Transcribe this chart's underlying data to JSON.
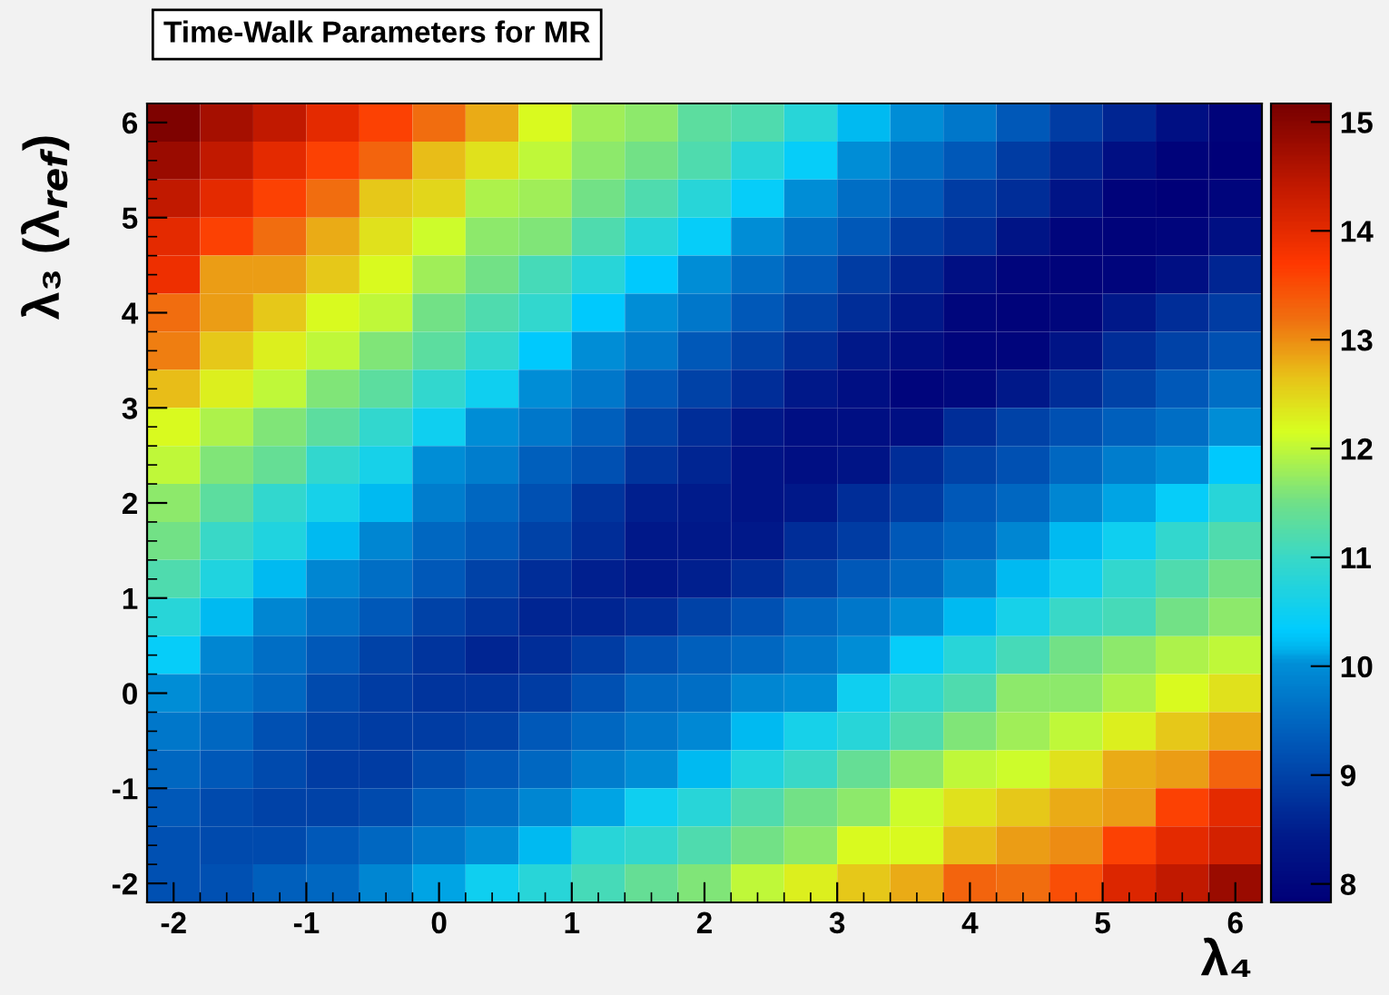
{
  "chart_data": {
    "type": "heatmap",
    "title": "Time-Walk Parameters for MR",
    "xlabel": "λ₄",
    "ylabel": "λ₃ (λ$_{ref}$)",
    "x": [
      -2.0,
      -1.6,
      -1.2,
      -0.8,
      -0.4,
      0.0,
      0.4,
      0.8,
      1.2,
      1.6,
      2.0,
      2.4,
      2.8,
      3.2,
      3.6,
      4.0,
      4.4,
      4.8,
      5.2,
      5.6,
      6.0
    ],
    "y": [
      6.0,
      5.6,
      5.2,
      4.8,
      4.4,
      4.0,
      3.6,
      3.2,
      2.8,
      2.4,
      2.0,
      1.6,
      1.2,
      0.8,
      0.4,
      0.0,
      -0.4,
      -0.8,
      -1.2,
      -1.6,
      -2.0
    ],
    "xlim": [
      -2.2,
      6.2
    ],
    "xticks": [
      -2,
      -1,
      0,
      1,
      2,
      3,
      4,
      5,
      6
    ],
    "ylim": [
      -2.2,
      6.2
    ],
    "yticks": [
      -2,
      -1,
      0,
      1,
      2,
      3,
      4,
      5,
      6
    ],
    "clim": [
      7.83,
      15.17
    ],
    "cticks": [
      8,
      9,
      10,
      11,
      12,
      13,
      14,
      15
    ],
    "cells": [
      [
        15.1,
        14.7,
        14.4,
        14.0,
        13.6,
        13.2,
        12.8,
        12.2,
        11.8,
        11.7,
        11.3,
        11.2,
        10.8,
        10.2,
        10.0,
        9.7,
        9.3,
        8.9,
        8.6,
        8.2,
        7.9
      ],
      [
        14.8,
        14.4,
        14.0,
        13.6,
        13.3,
        12.7,
        12.4,
        12.0,
        11.7,
        11.5,
        11.2,
        10.8,
        10.4,
        10.0,
        9.6,
        9.3,
        8.9,
        8.6,
        8.2,
        7.9,
        7.85
      ],
      [
        14.4,
        14.0,
        13.6,
        13.2,
        12.6,
        12.5,
        11.9,
        11.8,
        11.5,
        11.2,
        10.8,
        10.4,
        10.0,
        9.6,
        9.3,
        8.9,
        8.7,
        8.3,
        7.9,
        7.85,
        7.95
      ],
      [
        14.0,
        13.6,
        13.2,
        12.8,
        12.4,
        12.1,
        11.7,
        11.6,
        11.2,
        10.8,
        10.4,
        10.0,
        9.6,
        9.3,
        8.9,
        8.7,
        8.3,
        7.95,
        7.9,
        7.95,
        8.2
      ],
      [
        13.9,
        12.9,
        12.9,
        12.6,
        12.2,
        11.8,
        11.5,
        11.1,
        10.8,
        10.3,
        10.0,
        9.6,
        9.3,
        8.9,
        8.6,
        8.2,
        7.95,
        7.9,
        7.95,
        8.2,
        8.6
      ],
      [
        13.2,
        12.9,
        12.6,
        12.2,
        12.0,
        11.5,
        11.2,
        10.9,
        10.3,
        10.0,
        9.7,
        9.3,
        9.0,
        8.7,
        8.4,
        8.0,
        7.9,
        8.0,
        8.4,
        8.7,
        8.9
      ],
      [
        13.1,
        12.6,
        12.3,
        12.0,
        11.6,
        11.3,
        10.9,
        10.3,
        10.0,
        9.7,
        9.3,
        9.0,
        8.7,
        8.4,
        8.15,
        7.95,
        7.95,
        8.3,
        8.7,
        9.0,
        9.2
      ],
      [
        12.7,
        12.3,
        12.0,
        11.6,
        11.3,
        10.9,
        10.5,
        10.0,
        9.7,
        9.3,
        9.0,
        8.7,
        8.4,
        8.2,
        7.95,
        8.05,
        8.4,
        8.7,
        9.0,
        9.3,
        9.6
      ],
      [
        12.2,
        11.9,
        11.6,
        11.3,
        10.9,
        10.5,
        10.0,
        9.7,
        9.4,
        9.0,
        8.7,
        8.4,
        8.2,
        8.2,
        8.2,
        8.7,
        9.0,
        9.2,
        9.4,
        9.6,
        10.0
      ],
      [
        12.0,
        11.6,
        11.4,
        10.9,
        10.6,
        10.0,
        9.8,
        9.4,
        9.2,
        8.8,
        8.6,
        8.3,
        8.2,
        8.3,
        8.7,
        9.0,
        9.2,
        9.5,
        9.8,
        10.0,
        10.3
      ],
      [
        11.7,
        11.3,
        10.9,
        10.6,
        10.2,
        9.8,
        9.5,
        9.2,
        8.8,
        8.5,
        8.45,
        8.3,
        8.4,
        8.7,
        8.9,
        9.3,
        9.5,
        9.9,
        10.1,
        10.4,
        10.8
      ],
      [
        11.5,
        11.0,
        10.7,
        10.2,
        9.9,
        9.5,
        9.3,
        9.0,
        8.7,
        8.4,
        8.4,
        8.4,
        8.7,
        8.9,
        9.3,
        9.5,
        9.9,
        10.2,
        10.5,
        10.9,
        11.2
      ],
      [
        11.2,
        10.7,
        10.2,
        9.9,
        9.6,
        9.3,
        9.0,
        8.7,
        8.5,
        8.4,
        8.5,
        8.7,
        9.0,
        9.3,
        9.5,
        9.9,
        10.2,
        10.5,
        10.9,
        11.2,
        11.5
      ],
      [
        10.8,
        10.2,
        9.9,
        9.6,
        9.3,
        9.0,
        8.8,
        8.6,
        8.6,
        8.7,
        9.0,
        9.2,
        9.5,
        9.7,
        10.0,
        10.2,
        10.6,
        11.0,
        11.1,
        11.5,
        11.7
      ],
      [
        10.4,
        9.9,
        9.6,
        9.3,
        9.0,
        8.8,
        8.6,
        8.7,
        8.9,
        9.2,
        9.4,
        9.5,
        9.7,
        10.0,
        10.4,
        10.8,
        11.1,
        11.5,
        11.7,
        11.9,
        12.0
      ],
      [
        10.0,
        9.7,
        9.5,
        9.1,
        8.9,
        8.8,
        8.8,
        8.9,
        9.2,
        9.5,
        9.6,
        9.9,
        10.0,
        10.5,
        10.9,
        11.2,
        11.7,
        11.7,
        11.9,
        12.2,
        12.4
      ],
      [
        9.7,
        9.5,
        9.2,
        9.0,
        8.9,
        8.9,
        9.0,
        9.3,
        9.5,
        9.7,
        9.95,
        10.2,
        10.6,
        10.8,
        11.2,
        11.6,
        11.8,
        12.0,
        12.3,
        12.6,
        12.8
      ],
      [
        9.5,
        9.3,
        9.1,
        8.9,
        8.9,
        9.1,
        9.3,
        9.5,
        9.8,
        10.0,
        10.2,
        10.7,
        11.0,
        11.4,
        11.7,
        12.0,
        12.1,
        12.4,
        12.8,
        12.9,
        13.3
      ],
      [
        9.3,
        9.1,
        9.0,
        9.0,
        9.1,
        9.4,
        9.6,
        9.9,
        10.1,
        10.5,
        10.8,
        11.2,
        11.5,
        11.7,
        12.1,
        12.4,
        12.6,
        12.8,
        12.9,
        13.6,
        14.0
      ],
      [
        9.2,
        9.1,
        9.1,
        9.3,
        9.5,
        9.7,
        10.0,
        10.2,
        10.8,
        10.9,
        11.2,
        11.5,
        11.7,
        12.2,
        12.2,
        12.7,
        12.9,
        13.0,
        13.6,
        14.0,
        14.2
      ],
      [
        9.2,
        9.2,
        9.4,
        9.5,
        9.9,
        10.1,
        10.5,
        10.8,
        11.1,
        11.4,
        11.6,
        12.0,
        12.3,
        12.6,
        12.8,
        13.3,
        13.2,
        13.5,
        14.1,
        14.4,
        14.8
      ]
    ]
  }
}
